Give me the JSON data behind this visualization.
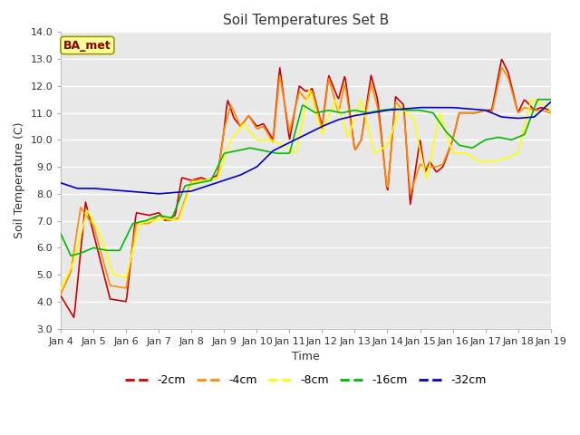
{
  "title": "Soil Temperatures Set B",
  "xlabel": "Time",
  "ylabel": "Soil Temperature (C)",
  "ylim": [
    3.0,
    14.0
  ],
  "yticks": [
    3.0,
    4.0,
    5.0,
    6.0,
    7.0,
    8.0,
    9.0,
    10.0,
    11.0,
    12.0,
    13.0,
    14.0
  ],
  "xtick_labels": [
    "Jan 4",
    "Jan 5",
    "Jan 6",
    "Jan 7",
    "Jan 8",
    "Jan 9",
    "Jan 10",
    "Jan 11",
    "Jan 12",
    "Jan 13",
    "Jan 14",
    "Jan 15",
    "Jan 16",
    "Jan 17",
    "Jan 18",
    "Jan 19"
  ],
  "annotation_text": "BA_met",
  "annotation_color": "#8B0000",
  "annotation_bg": "#FFFF99",
  "annotation_edge": "#999900",
  "fig_bg": "#FFFFFF",
  "plot_bg": "#E8E8E8",
  "grid_color": "#FFFFFF",
  "colors": {
    "-2cm": "#CC0000",
    "-4cm": "#FF8C00",
    "-8cm": "#FFFF00",
    "-16cm": "#00BB00",
    "-32cm": "#0000CC"
  },
  "linewidth": 1.2,
  "title_fontsize": 11,
  "tick_fontsize": 8,
  "label_fontsize": 9,
  "data_2cm_t": [
    0,
    0.4,
    0.75,
    1.0,
    1.5,
    2.0,
    2.3,
    2.7,
    3.0,
    3.2,
    3.5,
    3.7,
    4.0,
    4.3,
    4.5,
    4.8,
    5.0,
    5.1,
    5.3,
    5.5,
    5.75,
    6.0,
    6.2,
    6.5,
    6.7,
    7.0,
    7.3,
    7.5,
    7.7,
    8.0,
    8.2,
    8.5,
    8.7,
    9.0,
    9.2,
    9.5,
    9.7,
    10.0,
    10.25,
    10.5,
    10.7,
    11.0,
    11.15,
    11.3,
    11.5,
    11.7,
    12.0,
    12.2,
    12.5,
    12.7,
    13.0,
    13.2,
    13.5,
    13.7,
    14.0,
    14.2,
    14.5,
    14.7,
    15.0
  ],
  "data_2cm_v": [
    4.2,
    3.4,
    7.7,
    6.5,
    4.1,
    4.0,
    7.3,
    7.2,
    7.3,
    7.0,
    7.2,
    8.6,
    8.5,
    8.6,
    8.5,
    8.7,
    10.4,
    11.5,
    10.8,
    10.5,
    10.9,
    10.5,
    10.6,
    10.0,
    12.7,
    10.0,
    12.0,
    11.8,
    11.9,
    10.5,
    12.4,
    11.5,
    12.4,
    9.6,
    10.0,
    12.4,
    11.5,
    8.0,
    11.6,
    11.3,
    7.6,
    10.0,
    8.8,
    9.2,
    8.8,
    9.0,
    10.0,
    11.0,
    11.0,
    11.0,
    11.1,
    11.1,
    13.0,
    12.5,
    11.0,
    11.5,
    11.1,
    11.2,
    11.1
  ],
  "data_4cm_t": [
    0,
    0.3,
    0.6,
    1.0,
    1.5,
    2.0,
    2.3,
    2.7,
    3.0,
    3.3,
    3.6,
    4.0,
    4.3,
    4.5,
    4.8,
    5.0,
    5.2,
    5.5,
    5.75,
    6.0,
    6.2,
    6.5,
    6.7,
    7.0,
    7.3,
    7.5,
    7.7,
    8.0,
    8.2,
    8.5,
    8.7,
    9.0,
    9.2,
    9.5,
    9.7,
    10.0,
    10.25,
    10.5,
    10.7,
    11.0,
    11.15,
    11.3,
    11.5,
    11.7,
    12.0,
    12.2,
    12.5,
    12.7,
    13.0,
    13.2,
    13.5,
    13.7,
    14.0,
    14.2,
    14.5,
    14.7,
    15.0
  ],
  "data_4cm_v": [
    4.3,
    5.1,
    7.5,
    6.8,
    4.6,
    4.5,
    6.9,
    6.9,
    7.2,
    7.0,
    7.1,
    8.5,
    8.5,
    8.5,
    8.6,
    10.4,
    11.3,
    10.5,
    10.9,
    10.4,
    10.5,
    9.9,
    12.4,
    10.3,
    11.8,
    11.5,
    11.8,
    10.4,
    12.3,
    11.0,
    12.1,
    9.6,
    10.0,
    12.1,
    11.2,
    8.1,
    11.4,
    11.1,
    8.0,
    9.1,
    9.0,
    9.0,
    9.0,
    9.1,
    10.0,
    11.0,
    11.0,
    11.0,
    11.1,
    11.0,
    12.7,
    12.3,
    11.0,
    11.2,
    11.1,
    11.1,
    11.0
  ],
  "data_8cm_t": [
    0,
    0.4,
    0.8,
    1.2,
    1.6,
    2.0,
    2.4,
    2.8,
    3.2,
    3.6,
    4.0,
    4.4,
    4.8,
    5.2,
    5.6,
    6.0,
    6.4,
    6.8,
    7.2,
    7.6,
    8.0,
    8.4,
    8.8,
    9.2,
    9.6,
    10.0,
    10.4,
    10.8,
    11.2,
    11.6,
    12.0,
    12.4,
    12.8,
    13.2,
    13.6,
    14.0,
    14.4,
    14.8,
    15.0
  ],
  "data_8cm_v": [
    4.5,
    5.5,
    7.4,
    6.5,
    5.0,
    4.9,
    6.9,
    7.0,
    7.1,
    7.0,
    8.4,
    8.5,
    8.6,
    10.0,
    10.6,
    10.0,
    10.0,
    9.8,
    9.5,
    11.9,
    10.2,
    11.5,
    10.1,
    11.5,
    9.5,
    9.8,
    11.2,
    10.8,
    8.5,
    11.0,
    9.5,
    9.5,
    9.2,
    9.2,
    9.3,
    9.5,
    11.5,
    11.3,
    11.1
  ],
  "data_16cm_t": [
    0,
    0.3,
    0.6,
    1.0,
    1.4,
    1.8,
    2.2,
    2.6,
    3.0,
    3.4,
    3.8,
    4.2,
    4.6,
    5.0,
    5.4,
    5.8,
    6.2,
    6.6,
    7.0,
    7.4,
    7.8,
    8.2,
    8.6,
    9.0,
    9.4,
    9.8,
    10.2,
    10.6,
    11.0,
    11.4,
    11.8,
    12.2,
    12.6,
    13.0,
    13.4,
    13.8,
    14.2,
    14.6,
    15.0
  ],
  "data_16cm_v": [
    6.5,
    5.7,
    5.8,
    6.0,
    5.9,
    5.9,
    6.9,
    7.0,
    7.2,
    7.1,
    8.3,
    8.4,
    8.5,
    9.5,
    9.6,
    9.7,
    9.6,
    9.5,
    9.5,
    11.3,
    11.0,
    11.1,
    11.0,
    11.1,
    11.0,
    11.1,
    11.15,
    11.1,
    11.1,
    11.0,
    10.3,
    9.8,
    9.7,
    10.0,
    10.1,
    10.0,
    10.2,
    11.5,
    11.5
  ],
  "data_32cm_t": [
    0,
    0.5,
    1.0,
    1.5,
    2.0,
    2.5,
    3.0,
    3.5,
    4.0,
    4.5,
    5.0,
    5.5,
    6.0,
    6.5,
    7.0,
    7.5,
    8.0,
    8.5,
    9.0,
    9.5,
    10.0,
    10.5,
    11.0,
    11.5,
    12.0,
    12.5,
    13.0,
    13.5,
    14.0,
    14.5,
    15.0
  ],
  "data_32cm_v": [
    8.4,
    8.2,
    8.2,
    8.15,
    8.1,
    8.05,
    8.0,
    8.05,
    8.1,
    8.3,
    8.5,
    8.7,
    9.0,
    9.6,
    9.9,
    10.2,
    10.5,
    10.75,
    10.9,
    11.0,
    11.1,
    11.15,
    11.2,
    11.2,
    11.2,
    11.15,
    11.1,
    10.85,
    10.8,
    10.85,
    11.4
  ]
}
